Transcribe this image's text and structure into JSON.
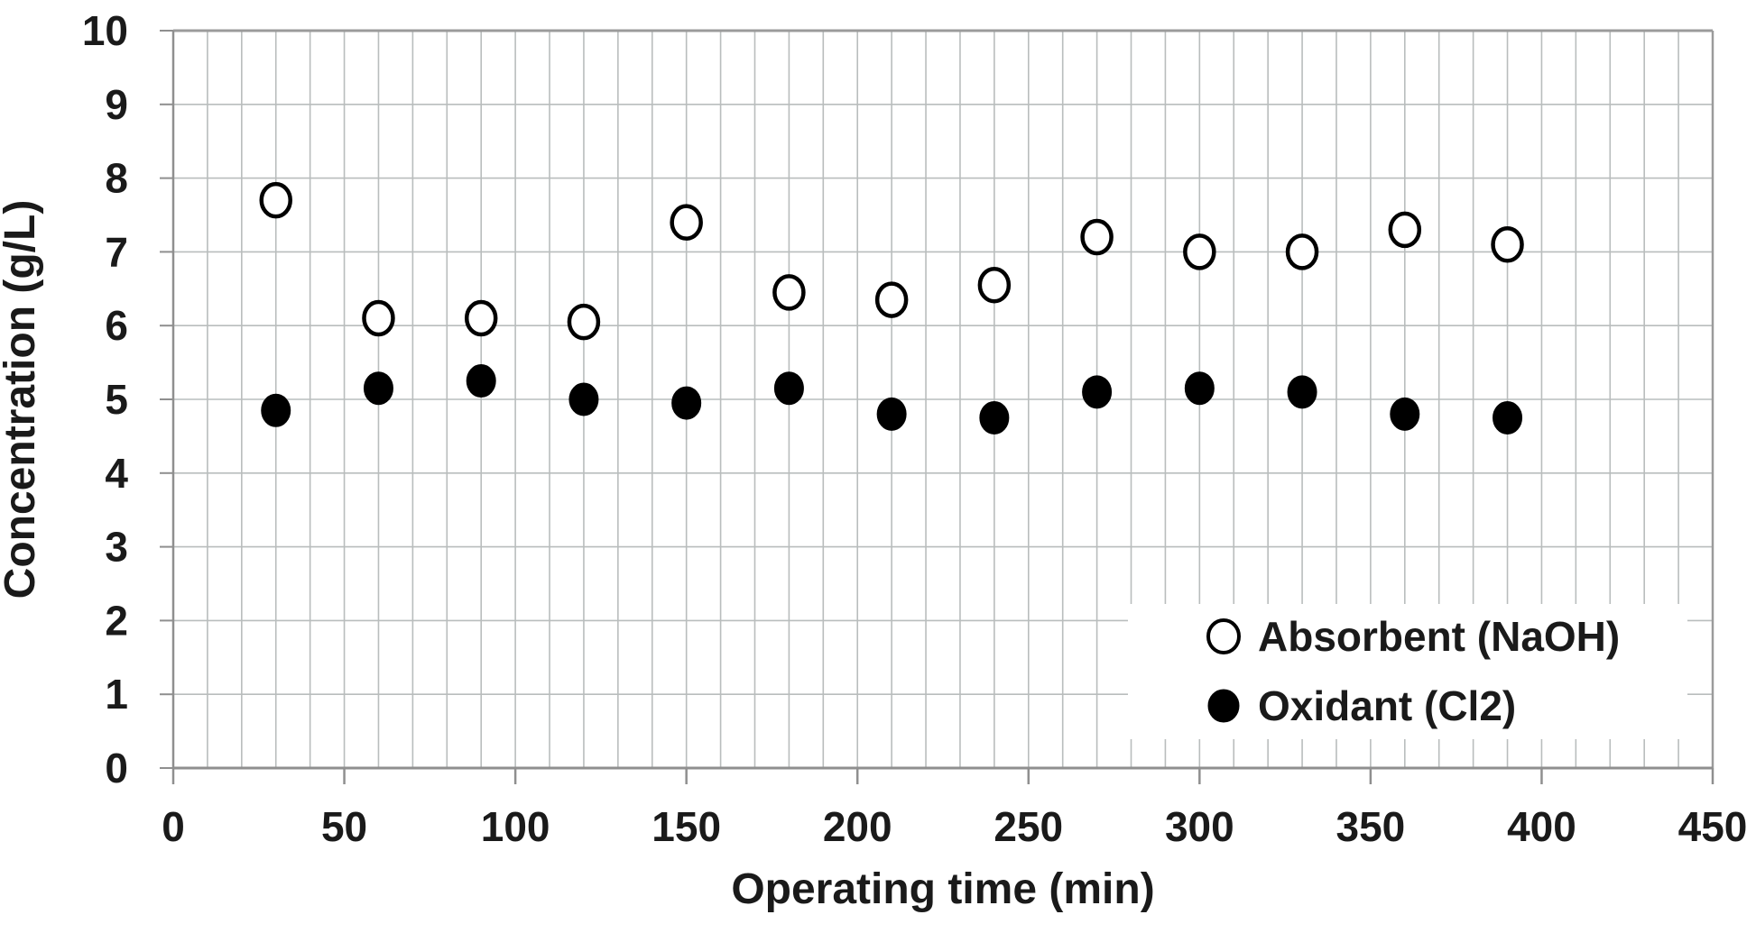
{
  "chart_data": {
    "type": "scatter",
    "title": "",
    "xlabel": "Operating time (min)",
    "ylabel": "Concentration (g/L)",
    "xlim": [
      0,
      450
    ],
    "ylim": [
      0,
      10
    ],
    "x_major_ticks": [
      0,
      50,
      100,
      150,
      200,
      250,
      300,
      350,
      400,
      450
    ],
    "x_minor_grid_step": 10,
    "y_ticks": [
      0,
      1,
      2,
      3,
      4,
      5,
      6,
      7,
      8,
      9,
      10
    ],
    "grid": "vertical minor every 10 min, horizontal every 1 g/L",
    "legend_position": "inside bottom-right, white box",
    "x": [
      30,
      60,
      90,
      120,
      150,
      180,
      210,
      240,
      270,
      300,
      330,
      360,
      390
    ],
    "series": [
      {
        "name": "Absorbent (NaOH)",
        "marker": "open-circle",
        "values": [
          7.7,
          6.1,
          6.1,
          6.05,
          7.4,
          6.45,
          6.35,
          6.55,
          7.2,
          7.0,
          7.0,
          7.3,
          7.1
        ]
      },
      {
        "name": "Oxidant (Cl2)",
        "marker": "filled-circle",
        "values": [
          4.85,
          5.15,
          5.25,
          5.0,
          4.95,
          5.15,
          4.8,
          4.75,
          5.1,
          5.15,
          5.1,
          4.8,
          4.75
        ]
      }
    ]
  },
  "colors": {
    "background": "#ffffff",
    "grid": "#b9bdbd",
    "axis": "#8f8f8f",
    "border": "#9b9b9b",
    "marker": "#000000",
    "text": "#1a1a1a"
  }
}
